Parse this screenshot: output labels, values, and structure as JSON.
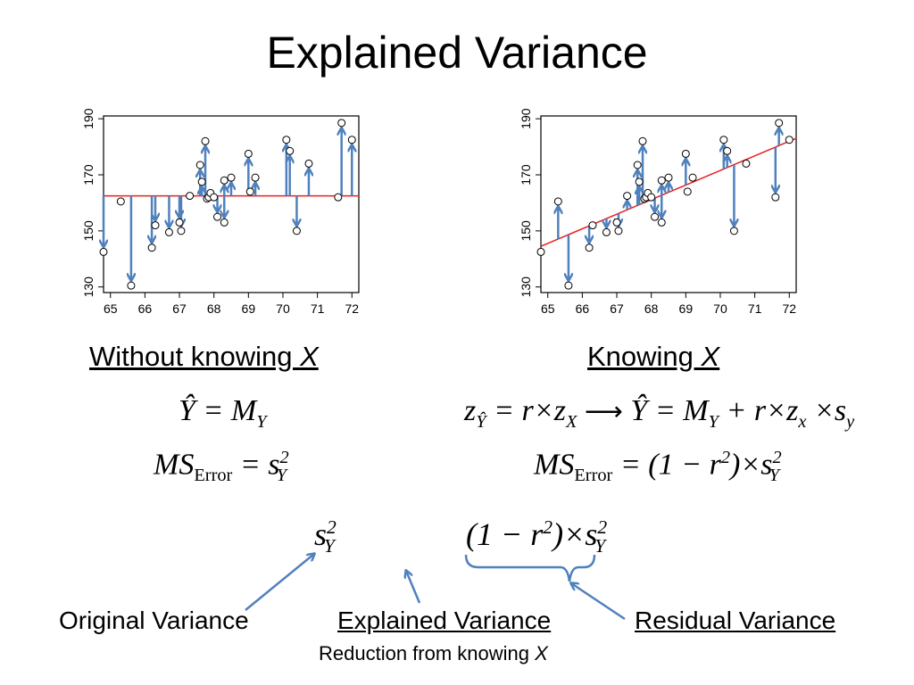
{
  "slide": {
    "title": "Explained Variance",
    "caption_left": "Without knowing ",
    "caption_right": "Knowing ",
    "caption_var": "X"
  },
  "formulas": {
    "yhat_left": "Ŷ = M",
    "yhat_left_sub": "Y",
    "ms_left_ms": "MS",
    "ms_left_sub": "Error",
    "ms_left_eq": " = s",
    "ms_left_sup": "2",
    "ms_left_sub2": "Y",
    "z_right": "z",
    "z_right_sub": "Ŷ",
    "z_right_rest": " = r×z",
    "z_right_sub2": "X",
    "arrow": "⟶",
    "yhat_right": "Ŷ = M",
    "yhat_right_sub": "Y",
    "yhat_right_rest1": " + r×z",
    "yhat_right_sub2": "x",
    "yhat_right_rest2": " ×s",
    "yhat_right_sub3": "y",
    "ms_right_ms": "MS",
    "ms_right_sub": "Error",
    "ms_right_eq": " = (1 − r",
    "ms_right_sup": "2",
    "ms_right_rest": ")×s",
    "ms_right_sup2": "2",
    "ms_right_sub2": "Y",
    "orig_s": "s",
    "orig_sup": "2",
    "orig_sub": "Y",
    "resid_open": "(1 − r",
    "resid_sup": "2",
    "resid_rest": ")×s",
    "resid_sup2": "2",
    "resid_sub2": "Y"
  },
  "labels": {
    "original": "Original Variance",
    "explained": "Explained Variance",
    "reduction_text": "Reduction from knowing ",
    "reduction_var": "X",
    "residual": "Residual Variance"
  },
  "colors": {
    "arrow": "#4f81bd",
    "regression_line": "#e8201c",
    "mean_line": "#e8201c",
    "points": "#000000"
  },
  "chart_data": [
    {
      "type": "scatter",
      "x": [
        64.8,
        65.3,
        65.6,
        66.2,
        66.3,
        66.7,
        67.0,
        67.05,
        67.3,
        67.6,
        67.65,
        67.75,
        67.8,
        67.85,
        67.9,
        68.0,
        68.1,
        68.3,
        68.3,
        68.5,
        69.0,
        69.05,
        69.2,
        70.1,
        70.2,
        70.4,
        70.75,
        71.6,
        71.7,
        72.0
      ],
      "y": [
        142.5,
        160.5,
        130.5,
        144,
        152,
        149.5,
        153,
        150,
        162.5,
        173.5,
        167.5,
        182,
        161.5,
        162,
        163.5,
        162,
        155,
        168,
        153,
        169,
        177.5,
        164,
        169,
        182.5,
        178.5,
        150,
        174,
        162,
        188.5,
        182.5
      ],
      "xlim": [
        64.8,
        72.2
      ],
      "ylim": [
        128,
        191
      ],
      "xticks": [
        "65",
        "66",
        "67",
        "68",
        "69",
        "70",
        "71",
        "72"
      ],
      "yticks": [
        "130",
        "150",
        "170",
        "190"
      ],
      "mean_line_y": 162.5,
      "arrows": "from mean line to each point"
    },
    {
      "type": "scatter",
      "x": [
        64.8,
        65.3,
        65.6,
        66.2,
        66.3,
        66.7,
        67.0,
        67.05,
        67.3,
        67.6,
        67.65,
        67.75,
        67.8,
        67.85,
        67.9,
        68.0,
        68.1,
        68.3,
        68.3,
        68.5,
        69.0,
        69.05,
        69.2,
        70.1,
        70.2,
        70.4,
        70.75,
        71.6,
        71.7,
        72.0
      ],
      "y": [
        142.5,
        160.5,
        130.5,
        144,
        152,
        149.5,
        153,
        150,
        162.5,
        173.5,
        167.5,
        182,
        161.5,
        162,
        163.5,
        162,
        155,
        168,
        153,
        169,
        177.5,
        164,
        169,
        182.5,
        178.5,
        150,
        174,
        162,
        188.5,
        182.5
      ],
      "xlim": [
        64.8,
        72.2
      ],
      "ylim": [
        128,
        191
      ],
      "xticks": [
        "65",
        "66",
        "67",
        "68",
        "69",
        "70",
        "71",
        "72"
      ],
      "yticks": [
        "130",
        "150",
        "170",
        "190"
      ],
      "regression_line": {
        "x": [
          64.8,
          72.2
        ],
        "y": [
          144.5,
          183
        ]
      },
      "arrows": "from regression line to each point"
    }
  ]
}
